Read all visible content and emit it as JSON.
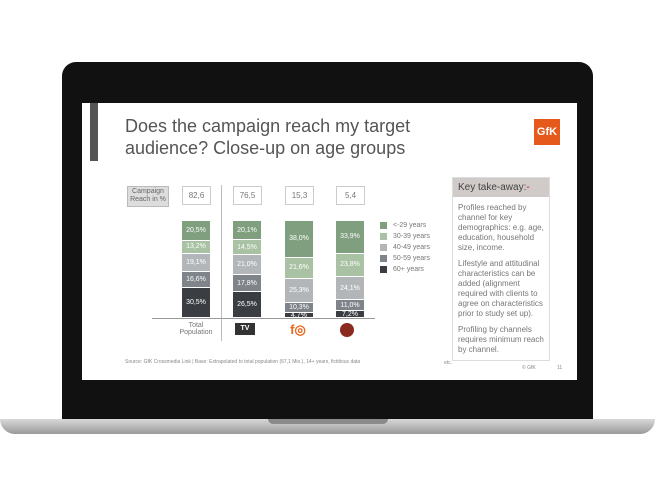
{
  "slide": {
    "title": "Does the campaign reach my target audience? Close-up on age groups",
    "logo": "GfK",
    "reach_label": "Campaign Reach in %",
    "source": "Source: GfK Crossmedia Link | Base: Extrapolated to total population (67,1 Mio.), 14+ years, fictitious data",
    "etc": "etc.",
    "copyright": "© GfK",
    "page": "11",
    "takeaway": {
      "title": "Key take-away:",
      "dash": "-",
      "paragraphs": [
        "Profiles reached by channel for key demographics: e.g. age, education, household size, income.",
        "Lifestyle and attitudinal characteristics can be added (alignment required with clients to agree on characteristics prior to study set up).",
        "Profiling by channels requires minimum reach by channel."
      ]
    }
  },
  "chart_data": {
    "type": "bar",
    "stacked": true,
    "categories": [
      "Total Population",
      "TV",
      "Social (Facebook/Instagram)",
      "Online"
    ],
    "category_icons": [
      "text",
      "tv-icon",
      "facebook-instagram-icon",
      "globe-cursor-icon"
    ],
    "reach": [
      "82,6",
      "76,5",
      "15,3",
      "5,4"
    ],
    "series": [
      {
        "name": "<-29 years",
        "color": "#7f9f7e",
        "values": [
          20.5,
          20.1,
          38.0,
          33.9
        ],
        "labels": [
          "20,5%",
          "20,1%",
          "38,0%",
          "33,9%"
        ]
      },
      {
        "name": "30-39 years",
        "color": "#a8c2a3",
        "values": [
          13.2,
          14.5,
          21.6,
          23.8
        ],
        "labels": [
          "13,2%",
          "14,5%",
          "21,6%",
          "23,8%"
        ]
      },
      {
        "name": "40-49 years",
        "color": "#b3b6b9",
        "values": [
          19.1,
          21.0,
          25.3,
          24.1
        ],
        "labels": [
          "19,1%",
          "21,0%",
          "25,3%",
          "24,1%"
        ]
      },
      {
        "name": "50-59 years",
        "color": "#7f838a",
        "values": [
          16.6,
          17.8,
          10.3,
          11.0
        ],
        "labels": [
          "16,6%",
          "17,8%",
          "10,3%",
          "11,0%"
        ]
      },
      {
        "name": "60+ years",
        "color": "#3a3d42",
        "values": [
          30.5,
          26.5,
          4.7,
          7.2
        ],
        "labels": [
          "30,5%",
          "26,5%",
          "4,7%",
          "7,2%"
        ]
      }
    ],
    "ylim": [
      0,
      100
    ],
    "legend": "right"
  }
}
